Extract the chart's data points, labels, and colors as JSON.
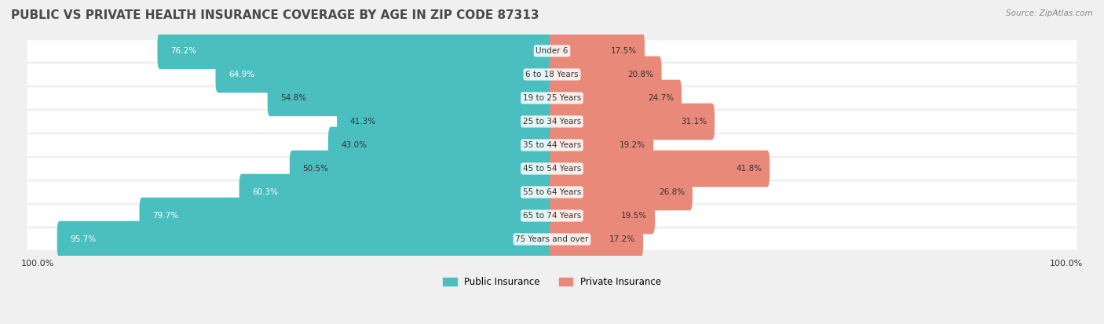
{
  "title": "PUBLIC VS PRIVATE HEALTH INSURANCE COVERAGE BY AGE IN ZIP CODE 87313",
  "source": "Source: ZipAtlas.com",
  "categories": [
    "Under 6",
    "6 to 18 Years",
    "19 to 25 Years",
    "25 to 34 Years",
    "35 to 44 Years",
    "45 to 54 Years",
    "55 to 64 Years",
    "65 to 74 Years",
    "75 Years and over"
  ],
  "public_values": [
    76.2,
    64.9,
    54.8,
    41.3,
    43.0,
    50.5,
    60.3,
    79.7,
    95.7
  ],
  "private_values": [
    17.5,
    20.8,
    24.7,
    31.1,
    19.2,
    41.8,
    26.8,
    19.5,
    17.2
  ],
  "public_color": "#4bbfbf",
  "private_color": "#e8897a",
  "bg_color": "#f0f0f0",
  "row_bg_color": "#ffffff",
  "label_color": "#333333",
  "title_color": "#4a4a4a",
  "max_value": 100.0,
  "bar_height": 0.55,
  "figsize": [
    14.06,
    4.13
  ],
  "dpi": 100
}
